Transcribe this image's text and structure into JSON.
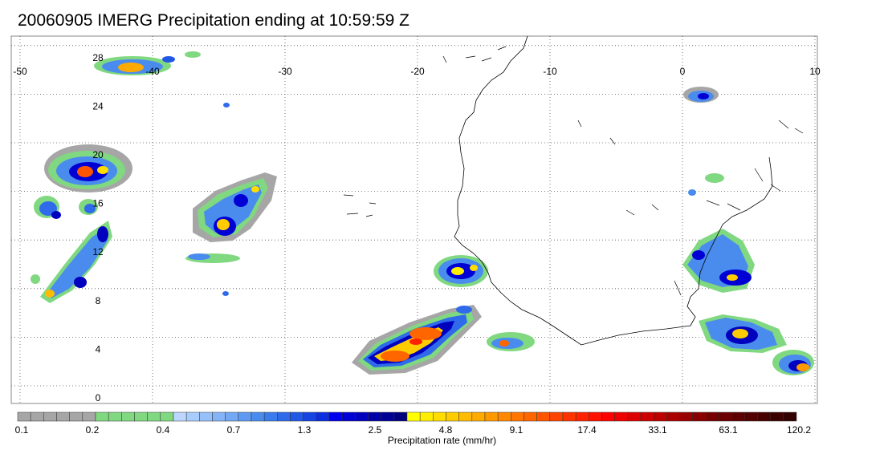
{
  "title": "20060905 IMERG Precipitation ending at 10:59:59 Z",
  "map": {
    "lon_range": [
      -50,
      10
    ],
    "lat_range": [
      0,
      30
    ],
    "lon_labels": [
      "-50",
      "-40",
      "-30",
      "-20",
      "-10",
      "0",
      "10"
    ],
    "lat_labels": [
      "28",
      "24",
      "20",
      "16",
      "12",
      "8",
      "4",
      "0"
    ],
    "grid": "dotted",
    "features": [
      "coastline-west-africa",
      "precipitation-cells"
    ]
  },
  "colorbar": {
    "label": "Precipitation rate (mm/hr)",
    "tick_labels": [
      "0.1",
      "0.2",
      "0.4",
      "0.7",
      "1.3",
      "2.5",
      "4.8",
      "9.1",
      "17.4",
      "33.1",
      "63.1",
      "120.2"
    ],
    "colors": [
      "#a6a6a6",
      "#a6a6a6",
      "#a6a6a6",
      "#a6a6a6",
      "#a6a6a6",
      "#a6a6a6",
      "#80d880",
      "#80d880",
      "#80d880",
      "#80d880",
      "#80d880",
      "#80d880",
      "#bcd6ff",
      "#a8ccfc",
      "#96c0fa",
      "#84b4f6",
      "#72a8f4",
      "#5e9af2",
      "#4a8cee",
      "#3a7cec",
      "#2e6aea",
      "#2258e6",
      "#1644e2",
      "#0a2ee0",
      "#0000ee",
      "#0000d4",
      "#0000be",
      "#0000a8",
      "#000094",
      "#00007e",
      "#ffff00",
      "#ffee00",
      "#ffdd00",
      "#ffcc00",
      "#ffbb00",
      "#ffaa00",
      "#ff9900",
      "#ff8800",
      "#ff7700",
      "#ff6600",
      "#ff5500",
      "#ff4400",
      "#ff3300",
      "#ff2200",
      "#ff1100",
      "#ff0000",
      "#ee0000",
      "#dd0000",
      "#cc0000",
      "#bb0000",
      "#aa0000",
      "#990000",
      "#880000",
      "#770000",
      "#6a0000",
      "#5e0000",
      "#520000",
      "#460000",
      "#3c0000",
      "#320000"
    ]
  }
}
